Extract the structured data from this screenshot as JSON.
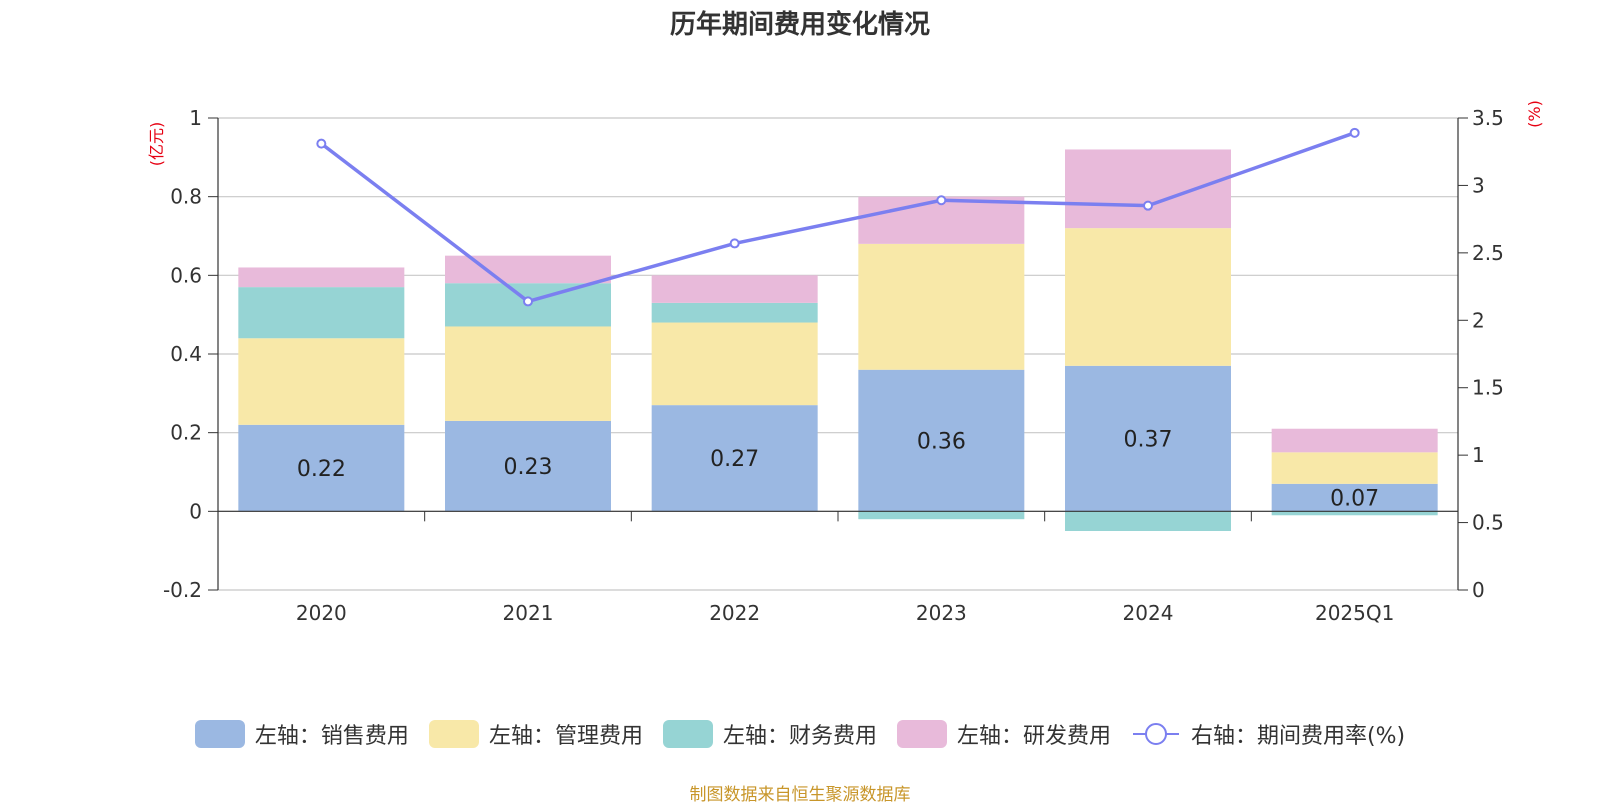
{
  "title": "历年期间费用变化情况",
  "source_text": "制图数据来自恒生聚源数据库",
  "colors": {
    "sales": "#9bb8e2",
    "admin": "#f8e8a8",
    "finance": "#96d4d4",
    "rd": "#e8bada",
    "rate_line": "#7b7ff0"
  },
  "chart_data": {
    "type": "bar",
    "stacked": true,
    "categories": [
      "2020",
      "2021",
      "2022",
      "2023",
      "2024",
      "2025Q1"
    ],
    "left_axis": {
      "unit": "(亿元)",
      "ylim": [
        -0.2,
        1
      ],
      "ticks": [
        -0.2,
        0,
        0.2,
        0.4,
        0.6,
        0.8,
        1
      ],
      "tick_labels": [
        "-0.2",
        "0",
        "0.2",
        "0.4",
        "0.6",
        "0.8",
        "1"
      ]
    },
    "right_axis": {
      "unit": "(%)",
      "ylim": [
        0,
        3.5
      ],
      "ticks": [
        0,
        0.5,
        1,
        1.5,
        2,
        2.5,
        3,
        3.5
      ],
      "tick_labels": [
        "0",
        "0.5",
        "1",
        "1.5",
        "2",
        "2.5",
        "3",
        "3.5"
      ]
    },
    "series": [
      {
        "name": "左轴：销售费用",
        "key": "sales",
        "axis": "left",
        "type": "bar",
        "values": [
          0.22,
          0.23,
          0.27,
          0.36,
          0.37,
          0.07
        ],
        "labels": [
          "0.22",
          "0.23",
          "0.27",
          "0.36",
          "0.37",
          "0.07"
        ]
      },
      {
        "name": "左轴：管理费用",
        "key": "admin",
        "axis": "left",
        "type": "bar",
        "values": [
          0.22,
          0.24,
          0.21,
          0.32,
          0.35,
          0.08
        ]
      },
      {
        "name": "左轴：财务费用",
        "key": "finance",
        "axis": "left",
        "type": "bar",
        "values": [
          0.13,
          0.11,
          0.05,
          -0.02,
          -0.05,
          -0.01
        ]
      },
      {
        "name": "左轴：研发费用",
        "key": "rd",
        "axis": "left",
        "type": "bar",
        "values": [
          0.05,
          0.07,
          0.07,
          0.12,
          0.2,
          0.06
        ]
      },
      {
        "name": "右轴：期间费用率(%)",
        "key": "rate_line",
        "axis": "right",
        "type": "line",
        "values": [
          3.31,
          2.14,
          2.57,
          2.89,
          2.85,
          3.39
        ]
      }
    ],
    "grid": true,
    "legend_position": "bottom"
  }
}
